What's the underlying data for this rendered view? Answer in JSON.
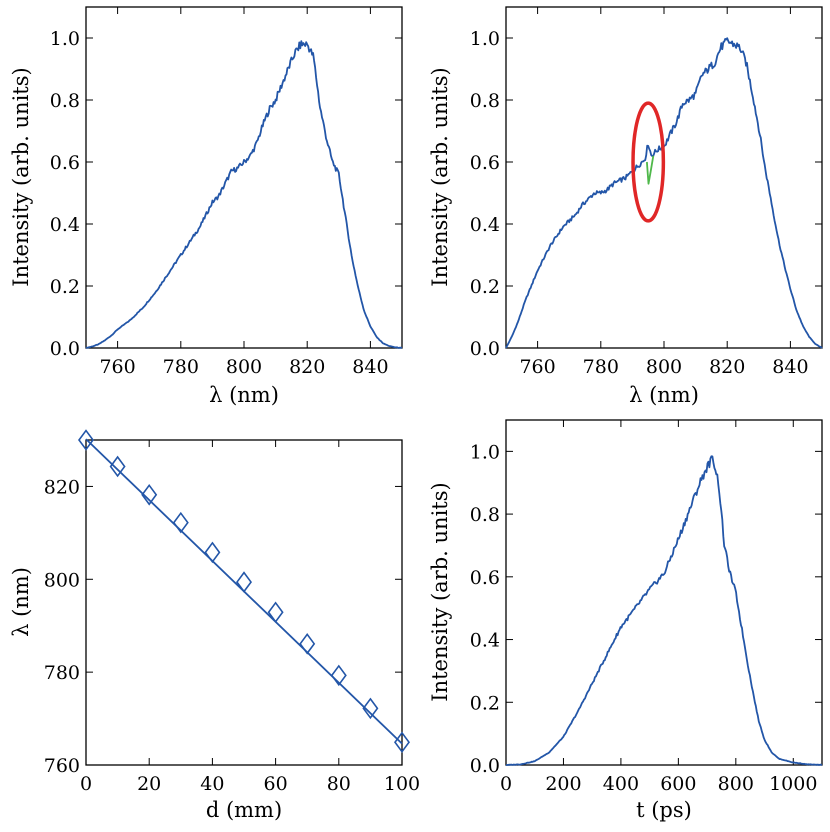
{
  "figure": {
    "line_color": "#2356a8",
    "artifact_color": "#4fb84a",
    "highlight_color": "#e02727"
  },
  "chart_data": [
    {
      "id": "p1",
      "type": "line",
      "xlabel": "λ (nm)",
      "ylabel": "Intensity (arb. units)",
      "xlim": [
        750,
        850
      ],
      "ylim": [
        0.0,
        1.1
      ],
      "xticks": [
        760,
        780,
        800,
        820,
        840
      ],
      "yticks": [
        0.0,
        0.2,
        0.4,
        0.6,
        0.8,
        1.0
      ],
      "xtick_labels": [
        "760",
        "780",
        "800",
        "820",
        "840"
      ],
      "ytick_labels": [
        "0.0",
        "0.2",
        "0.4",
        "0.6",
        "0.8",
        "1.0"
      ],
      "series": [
        {
          "name": "spectrum",
          "x": [
            750,
            752,
            754,
            756,
            758,
            760,
            762,
            764,
            766,
            768,
            770,
            772,
            774,
            776,
            778,
            780,
            782,
            784,
            786,
            788,
            790,
            792,
            794,
            796,
            798,
            800,
            802,
            804,
            806,
            808,
            810,
            812,
            814,
            816,
            818,
            820,
            822,
            824,
            826,
            828,
            830,
            832,
            834,
            836,
            838,
            840,
            842,
            844,
            846,
            848,
            850
          ],
          "y": [
            0.0,
            0.005,
            0.012,
            0.025,
            0.04,
            0.06,
            0.075,
            0.09,
            0.11,
            0.13,
            0.155,
            0.18,
            0.21,
            0.24,
            0.27,
            0.3,
            0.33,
            0.36,
            0.39,
            0.43,
            0.47,
            0.49,
            0.53,
            0.57,
            0.58,
            0.6,
            0.62,
            0.66,
            0.72,
            0.77,
            0.8,
            0.85,
            0.9,
            0.95,
            0.98,
            0.98,
            0.94,
            0.78,
            0.68,
            0.6,
            0.56,
            0.43,
            0.3,
            0.2,
            0.12,
            0.07,
            0.035,
            0.015,
            0.006,
            0.002,
            0.0
          ]
        }
      ]
    },
    {
      "id": "p2",
      "type": "line",
      "xlabel": "λ (nm)",
      "ylabel": "Intensity (arb. units)",
      "xlim": [
        750,
        850
      ],
      "ylim": [
        0.0,
        1.1
      ],
      "xticks": [
        760,
        780,
        800,
        820,
        840
      ],
      "yticks": [
        0.0,
        0.2,
        0.4,
        0.6,
        0.8,
        1.0
      ],
      "xtick_labels": [
        "760",
        "780",
        "800",
        "820",
        "840"
      ],
      "ytick_labels": [
        "0.0",
        "0.2",
        "0.4",
        "0.6",
        "0.8",
        "1.0"
      ],
      "series": [
        {
          "name": "spectrum",
          "x": [
            750,
            752,
            754,
            756,
            758,
            760,
            762,
            764,
            766,
            768,
            770,
            772,
            774,
            776,
            778,
            780,
            782,
            784,
            786,
            788,
            790,
            792,
            794,
            795,
            796,
            798,
            800,
            802,
            804,
            806,
            808,
            810,
            812,
            814,
            816,
            818,
            820,
            822,
            824,
            826,
            828,
            830,
            832,
            834,
            836,
            838,
            840,
            842,
            844,
            846,
            848,
            850
          ],
          "y": [
            0.0,
            0.04,
            0.09,
            0.15,
            0.2,
            0.25,
            0.29,
            0.33,
            0.36,
            0.39,
            0.41,
            0.43,
            0.46,
            0.48,
            0.5,
            0.5,
            0.51,
            0.53,
            0.54,
            0.55,
            0.57,
            0.59,
            0.61,
            0.66,
            0.62,
            0.64,
            0.65,
            0.69,
            0.73,
            0.79,
            0.8,
            0.82,
            0.88,
            0.9,
            0.92,
            0.97,
            0.99,
            0.98,
            0.97,
            0.92,
            0.82,
            0.71,
            0.58,
            0.47,
            0.36,
            0.27,
            0.19,
            0.12,
            0.07,
            0.035,
            0.012,
            0.0
          ]
        },
        {
          "name": "dip",
          "color_key": "artifact_color",
          "x": [
            794.6,
            795.1,
            795.8,
            796.6
          ],
          "y": [
            0.6,
            0.53,
            0.57,
            0.62
          ]
        }
      ],
      "annotation": {
        "type": "ellipse",
        "center": [
          795,
          0.6
        ],
        "radius_x": 4.8,
        "radius_y": 0.19
      }
    },
    {
      "id": "p3",
      "type": "line",
      "xlabel": "d (mm)",
      "ylabel": "λ (nm)",
      "xlim": [
        0,
        100
      ],
      "ylim": [
        760,
        830
      ],
      "xticks": [
        0,
        20,
        40,
        60,
        80,
        100
      ],
      "yticks": [
        760,
        780,
        800,
        820
      ],
      "xtick_labels": [
        "0",
        "20",
        "40",
        "60",
        "80",
        "100"
      ],
      "ytick_labels": [
        "760",
        "780",
        "800",
        "820"
      ],
      "series": [
        {
          "name": "fit",
          "x": [
            0,
            100
          ],
          "y": [
            830.2,
            764.6
          ]
        },
        {
          "name": "measured",
          "markers": "diamond",
          "x": [
            0,
            10,
            20,
            30,
            40,
            50,
            60,
            70,
            80,
            90,
            100
          ],
          "y": [
            830,
            824.3,
            818.2,
            812.2,
            805.8,
            799.4,
            792.9,
            786.1,
            779.3,
            772.2,
            764.9
          ]
        }
      ]
    },
    {
      "id": "p4",
      "type": "line",
      "xlabel": "t (ps)",
      "ylabel": "Intensity (arb. units)",
      "xlim": [
        0,
        1100
      ],
      "ylim": [
        0.0,
        1.1
      ],
      "xticks": [
        0,
        200,
        400,
        600,
        800,
        1000
      ],
      "yticks": [
        0.0,
        0.2,
        0.4,
        0.6,
        0.8,
        1.0
      ],
      "xtick_labels": [
        "0",
        "200",
        "400",
        "600",
        "800",
        "1000"
      ],
      "ytick_labels": [
        "0.0",
        "0.2",
        "0.4",
        "0.6",
        "0.8",
        "1.0"
      ],
      "series": [
        {
          "name": "time-domain",
          "x": [
            0,
            50,
            100,
            150,
            200,
            250,
            300,
            350,
            400,
            450,
            500,
            550,
            600,
            625,
            650,
            675,
            700,
            720,
            740,
            760,
            780,
            800,
            820,
            840,
            860,
            880,
            900,
            925,
            950,
            1000,
            1050,
            1100
          ],
          "y": [
            0.0,
            0.002,
            0.012,
            0.04,
            0.09,
            0.17,
            0.26,
            0.35,
            0.44,
            0.5,
            0.56,
            0.61,
            0.72,
            0.78,
            0.84,
            0.9,
            0.95,
            0.98,
            0.9,
            0.7,
            0.61,
            0.55,
            0.44,
            0.33,
            0.23,
            0.14,
            0.08,
            0.04,
            0.02,
            0.008,
            0.002,
            0.0
          ]
        }
      ]
    }
  ]
}
